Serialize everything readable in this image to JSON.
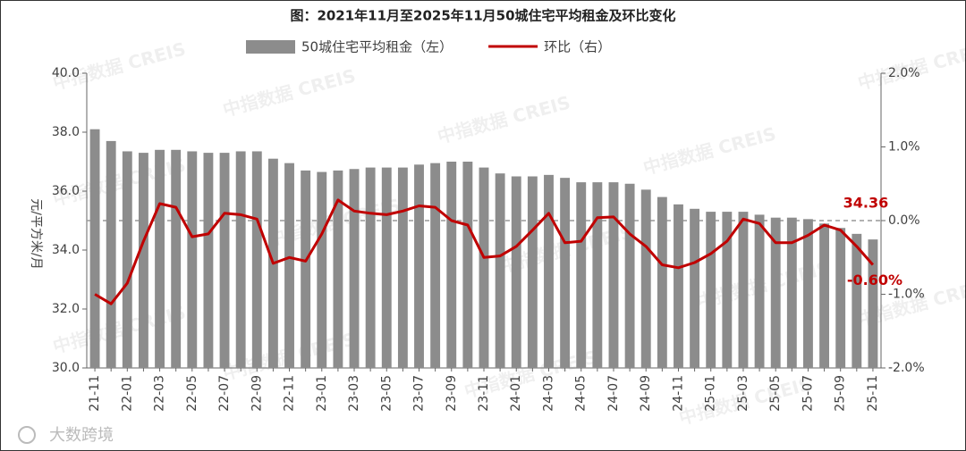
{
  "chart_data": {
    "type": "bar_line",
    "title": "图：2021年11月至2025年11月50城住宅平均租金及环比变化",
    "y_label": "元/平方米/月",
    "watermark": "中指数据 CREIS",
    "footer": "大数跨境",
    "categories": [
      "21-11",
      null,
      "22-01",
      null,
      "22-03",
      null,
      "22-05",
      null,
      "22-07",
      null,
      "22-09",
      null,
      "22-11",
      null,
      "23-01",
      null,
      "23-03",
      null,
      "23-05",
      null,
      "23-07",
      null,
      "23-09",
      null,
      "23-11",
      null,
      "24-01",
      null,
      "24-03",
      null,
      "24-05",
      null,
      "24-07",
      null,
      "24-09",
      null,
      "24-11",
      null,
      "25-01",
      null,
      "25-03",
      null,
      "25-05",
      null,
      "25-07",
      null,
      "25-09",
      null,
      "25-11"
    ],
    "series": [
      {
        "name": "50城住宅平均租金（左）",
        "type": "bar",
        "color": "#8c8c8c",
        "values": [
          38.1,
          37.7,
          37.35,
          37.3,
          37.4,
          37.4,
          37.35,
          37.3,
          37.3,
          37.35,
          37.35,
          37.1,
          36.95,
          36.7,
          36.65,
          36.7,
          36.75,
          36.8,
          36.8,
          36.8,
          36.9,
          36.95,
          37.0,
          37.0,
          36.8,
          36.6,
          36.5,
          36.5,
          36.55,
          36.45,
          36.3,
          36.3,
          36.3,
          36.25,
          36.05,
          35.8,
          35.55,
          35.4,
          35.3,
          35.3,
          35.3,
          35.2,
          35.1,
          35.1,
          35.05,
          34.9,
          34.75,
          34.55,
          34.36
        ],
        "labeled": [
          48
        ]
      },
      {
        "name": "环比（右）",
        "type": "line",
        "axis": "y2",
        "color": "#c00000",
        "values": [
          -1.0,
          -1.13,
          -0.85,
          -0.28,
          0.23,
          0.18,
          -0.22,
          -0.18,
          0.1,
          0.08,
          0.02,
          -0.58,
          -0.5,
          -0.55,
          -0.18,
          0.28,
          0.13,
          0.1,
          0.08,
          0.13,
          0.2,
          0.18,
          0.0,
          -0.06,
          -0.5,
          -0.48,
          -0.35,
          -0.13,
          0.1,
          -0.3,
          -0.28,
          0.04,
          0.05,
          -0.18,
          -0.35,
          -0.6,
          -0.64,
          -0.57,
          -0.45,
          -0.28,
          0.02,
          -0.04,
          -0.3,
          -0.3,
          -0.2,
          -0.06,
          -0.13,
          -0.35,
          -0.6
        ],
        "value_labels": [
          null,
          null,
          null,
          null,
          null,
          null,
          null,
          null,
          null,
          null,
          null,
          null,
          null,
          null,
          null,
          null,
          null,
          null,
          null,
          null,
          null,
          null,
          null,
          null,
          null,
          null,
          null,
          null,
          null,
          null,
          null,
          null,
          null,
          null,
          null,
          null,
          null,
          null,
          null,
          null,
          null,
          null,
          null,
          null,
          null,
          null,
          null,
          null,
          "-0.60%"
        ]
      }
    ],
    "ylim": [
      30,
      40
    ],
    "yticks": [
      {
        "value": 30,
        "label": "30.0"
      },
      {
        "value": 32,
        "label": "32.0"
      },
      {
        "value": 34,
        "label": "34.0"
      },
      {
        "value": 36,
        "label": "36.0"
      },
      {
        "value": 38,
        "label": "38.0"
      },
      {
        "value": 40,
        "label": "40.0"
      }
    ],
    "y2lim": [
      -2,
      2
    ],
    "y2ticks": [
      {
        "value": -2,
        "label": "-2.0%"
      },
      {
        "value": -1,
        "label": "-1.0%"
      },
      {
        "value": 0,
        "label": "0.0%"
      },
      {
        "value": 1,
        "label": "1.0%"
      },
      {
        "value": 2,
        "label": "2.0%"
      }
    ],
    "zero_line": true
  }
}
